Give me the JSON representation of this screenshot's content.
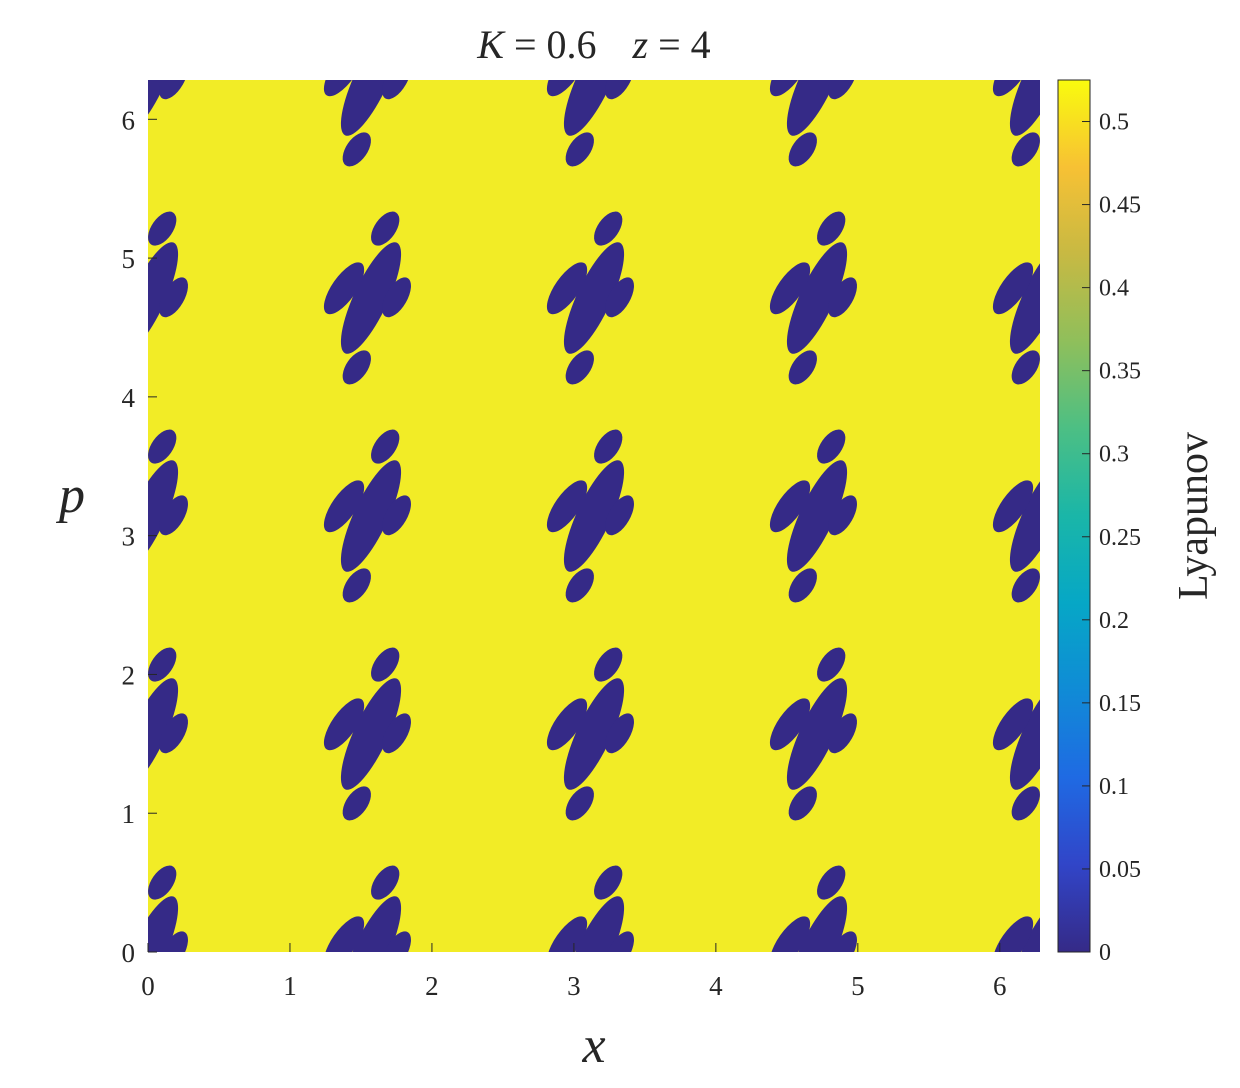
{
  "chart_data": {
    "type": "heatmap",
    "title": {
      "parts": [
        {
          "text": "K",
          "italic": true
        },
        {
          "text": " = 0.6",
          "italic": false
        },
        {
          "text": "z",
          "italic": true
        },
        {
          "text": " = 4",
          "italic": false
        }
      ]
    },
    "xlabel": "x",
    "ylabel": "p",
    "xlim": [
      0,
      6.2832
    ],
    "ylim": [
      0,
      6.2832
    ],
    "x_ticks": [
      0,
      1,
      2,
      3,
      4,
      5,
      6
    ],
    "y_ticks": [
      0,
      1,
      2,
      3,
      4,
      5,
      6
    ],
    "x_tick_labels": [
      "0",
      "1",
      "2",
      "3",
      "4",
      "5",
      "6"
    ],
    "y_tick_labels": [
      "0",
      "1",
      "2",
      "3",
      "4",
      "5",
      "6"
    ],
    "colorbar": {
      "label": "Lyapunov",
      "range": [
        0,
        0.525
      ],
      "ticks": [
        0,
        0.05,
        0.1,
        0.15,
        0.2,
        0.25,
        0.3,
        0.35,
        0.4,
        0.45,
        0.5
      ],
      "tick_labels": [
        "0",
        "0.05",
        "0.1",
        "0.15",
        "0.2",
        "0.25",
        "0.3",
        "0.35",
        "0.4",
        "0.45",
        "0.5"
      ],
      "colormap": "parula"
    },
    "background_value": 0.52,
    "island_value": 0,
    "lattice": {
      "x_period": 1.5708,
      "y_period": 1.5708,
      "x_offsets": [
        0,
        1.5708,
        3.1416,
        4.7124,
        6.2832
      ],
      "y_offsets": [
        0,
        1.5708,
        3.1416,
        4.7124,
        6.2832
      ]
    },
    "island_cluster": [
      {
        "shape": "main",
        "cx": 0.0,
        "cy": 0.0,
        "rx": 0.12,
        "ry": 0.44,
        "tilt_deg": 25
      },
      {
        "shape": "left-lobe",
        "cx": -0.19,
        "cy": 0.07,
        "rx": 0.085,
        "ry": 0.22,
        "tilt_deg": 35
      },
      {
        "shape": "right-lobe",
        "cx": 0.18,
        "cy": 0.005,
        "rx": 0.075,
        "ry": 0.16,
        "tilt_deg": 30
      },
      {
        "shape": "upper-satellite",
        "cx": 0.1,
        "cy": 0.5,
        "rx": 0.075,
        "ry": 0.14,
        "tilt_deg": 35
      },
      {
        "shape": "lower-satellite",
        "cx": -0.1,
        "cy": -0.5,
        "rx": 0.075,
        "ry": 0.14,
        "tilt_deg": 35
      }
    ]
  }
}
